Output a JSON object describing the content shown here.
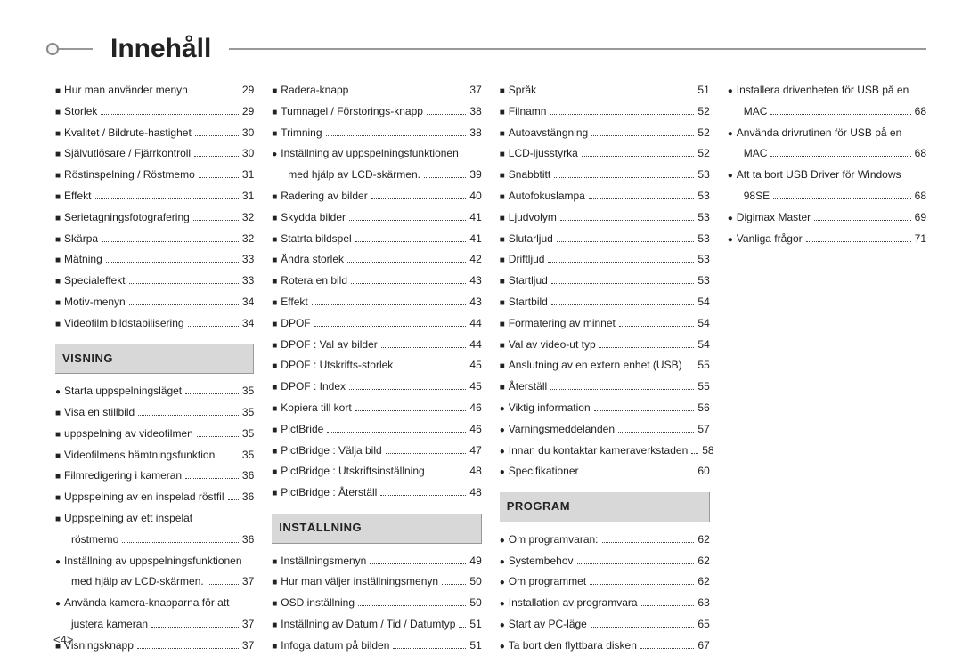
{
  "title": "Innehåll",
  "page_number_label": "<4>",
  "columns": [
    {
      "blocks": [
        {
          "type": "entries",
          "items": [
            {
              "b": "■",
              "t": "Hur man använder menyn",
              "p": "29"
            },
            {
              "b": "■",
              "t": "Storlek",
              "p": "29"
            },
            {
              "b": "■",
              "t": "Kvalitet / Bildrute-hastighet",
              "p": "30"
            },
            {
              "b": "■",
              "t": "Självutlösare / Fjärrkontroll",
              "p": "30"
            },
            {
              "b": "■",
              "t": "Röstinspelning / Röstmemo",
              "p": "31"
            },
            {
              "b": "■",
              "t": "Effekt",
              "p": "31"
            },
            {
              "b": "■",
              "t": "Serietagningsfotografering",
              "p": "32"
            },
            {
              "b": "■",
              "t": "Skärpa",
              "p": "32"
            },
            {
              "b": "■",
              "t": "Mätning",
              "p": "33"
            },
            {
              "b": "■",
              "t": "Specialeffekt",
              "p": "33"
            },
            {
              "b": "■",
              "t": "Motiv-menyn",
              "p": "34"
            },
            {
              "b": "■",
              "t": "Videofilm bildstabilisering",
              "p": "34"
            }
          ]
        },
        {
          "type": "heading",
          "text": "VISNING"
        },
        {
          "type": "entries",
          "items": [
            {
              "b": "●",
              "t": "Starta uppspelningsläget",
              "p": "35"
            },
            {
              "b": "■",
              "t": "Visa en stillbild",
              "p": "35"
            },
            {
              "b": "■",
              "t": "uppspelning av videofilmen",
              "p": "35"
            },
            {
              "b": "■",
              "t": "Videofilmens hämtningsfunktion",
              "p": "35"
            },
            {
              "b": "■",
              "t": "Filmredigering i kameran",
              "p": "36"
            },
            {
              "b": "■",
              "t": "Uppspelning av en inspelad röstfil",
              "p": "36"
            },
            {
              "b": "■",
              "t": "Uppspelning av ett inspelat",
              "p": ""
            },
            {
              "b": "",
              "t": "röstmemo",
              "p": "36",
              "cont": true
            },
            {
              "b": "●",
              "t": "Inställning av uppspelningsfunktionen",
              "p": ""
            },
            {
              "b": "",
              "t": "med hjälp av LCD-skärmen.",
              "p": "37",
              "cont": true
            },
            {
              "b": "●",
              "t": "Använda kamera-knapparna för att",
              "p": ""
            },
            {
              "b": "",
              "t": "justera kameran",
              "p": "37",
              "cont": true
            },
            {
              "b": "■",
              "t": "Visningsknapp",
              "p": "37"
            }
          ]
        }
      ]
    },
    {
      "blocks": [
        {
          "type": "entries",
          "items": [
            {
              "b": "■",
              "t": "Radera-knapp",
              "p": "37"
            },
            {
              "b": "■",
              "t": "Tumnagel / Förstorings-knapp",
              "p": "38"
            },
            {
              "b": "■",
              "t": "Trimning",
              "p": "38"
            },
            {
              "b": "●",
              "t": "Inställning av uppspelningsfunktionen",
              "p": ""
            },
            {
              "b": "",
              "t": "med hjälp av LCD-skärmen.",
              "p": "39",
              "cont": true
            },
            {
              "b": "■",
              "t": "Radering av bilder",
              "p": "40"
            },
            {
              "b": "■",
              "t": "Skydda bilder",
              "p": "41"
            },
            {
              "b": "■",
              "t": "Statrta bildspel",
              "p": "41"
            },
            {
              "b": "■",
              "t": "Ändra storlek",
              "p": "42"
            },
            {
              "b": "■",
              "t": "Rotera en bild",
              "p": "43"
            },
            {
              "b": "■",
              "t": "Effekt",
              "p": "43"
            },
            {
              "b": "■",
              "t": "DPOF",
              "p": "44"
            },
            {
              "b": "■",
              "t": "DPOF : Val av bilder",
              "p": "44"
            },
            {
              "b": "■",
              "t": "DPOF : Utskrifts-storlek",
              "p": "45"
            },
            {
              "b": "■",
              "t": "DPOF : Index",
              "p": "45"
            },
            {
              "b": "■",
              "t": "Kopiera till kort",
              "p": "46"
            },
            {
              "b": "■",
              "t": "PictBride",
              "p": "46"
            },
            {
              "b": "■",
              "t": "PictBridge : Välja bild",
              "p": "47"
            },
            {
              "b": "■",
              "t": "PictBridge : Utskriftsinställning",
              "p": "48"
            },
            {
              "b": "■",
              "t": "PictBridge : Återställ",
              "p": "48"
            }
          ]
        },
        {
          "type": "heading",
          "text": "INSTÄLLNING"
        },
        {
          "type": "entries",
          "items": [
            {
              "b": "■",
              "t": "Inställningsmenyn",
              "p": "49"
            },
            {
              "b": "■",
              "t": "Hur man väljer inställningsmenyn",
              "p": "50"
            },
            {
              "b": "■",
              "t": "OSD inställning",
              "p": "50"
            },
            {
              "b": "■",
              "t": "Inställning av Datum / Tid / Datumtyp",
              "p": "51"
            },
            {
              "b": "■",
              "t": "Infoga datum på bilden",
              "p": "51"
            }
          ]
        }
      ]
    },
    {
      "blocks": [
        {
          "type": "entries",
          "items": [
            {
              "b": "■",
              "t": "Språk",
              "p": "51"
            },
            {
              "b": "■",
              "t": "Filnamn",
              "p": "52"
            },
            {
              "b": "■",
              "t": "Autoavstängning",
              "p": "52"
            },
            {
              "b": "■",
              "t": "LCD-ljusstyrka",
              "p": "52"
            },
            {
              "b": "■",
              "t": "Snabbtitt",
              "p": "53"
            },
            {
              "b": "■",
              "t": "Autofokuslampa",
              "p": "53"
            },
            {
              "b": "■",
              "t": "Ljudvolym",
              "p": "53"
            },
            {
              "b": "■",
              "t": "Slutarljud",
              "p": "53"
            },
            {
              "b": "■",
              "t": "Driftljud",
              "p": "53"
            },
            {
              "b": "■",
              "t": "Startljud",
              "p": "53"
            },
            {
              "b": "■",
              "t": "Startbild",
              "p": "54"
            },
            {
              "b": "■",
              "t": "Formatering av minnet",
              "p": "54"
            },
            {
              "b": "■",
              "t": "Val av video-ut typ",
              "p": "54"
            },
            {
              "b": "■",
              "t": "Anslutning av en extern enhet (USB)",
              "p": "55"
            },
            {
              "b": "■",
              "t": "Återställ",
              "p": "55"
            },
            {
              "b": "●",
              "t": "Viktig information",
              "p": "56"
            },
            {
              "b": "●",
              "t": "Varningsmeddelanden",
              "p": "57"
            },
            {
              "b": "●",
              "t": "Innan du kontaktar kameraverkstaden",
              "p": "58"
            },
            {
              "b": "●",
              "t": "Specifikationer",
              "p": "60"
            }
          ]
        },
        {
          "type": "heading",
          "text": "PROGRAM"
        },
        {
          "type": "entries",
          "items": [
            {
              "b": "●",
              "t": "Om programvaran:",
              "p": "62"
            },
            {
              "b": "●",
              "t": "Systembehov",
              "p": "62"
            },
            {
              "b": "●",
              "t": "Om programmet",
              "p": "62"
            },
            {
              "b": "●",
              "t": "Installation av programvara",
              "p": "63"
            },
            {
              "b": "●",
              "t": "Start av PC-läge",
              "p": "65"
            },
            {
              "b": "●",
              "t": "Ta bort den flyttbara disken",
              "p": "67"
            }
          ]
        }
      ]
    },
    {
      "blocks": [
        {
          "type": "entries",
          "items": [
            {
              "b": "●",
              "t": "Installera drivenheten för USB på en",
              "p": ""
            },
            {
              "b": "",
              "t": "MAC",
              "p": "68",
              "cont": true
            },
            {
              "b": "●",
              "t": "Använda drivrutinen för USB på en",
              "p": ""
            },
            {
              "b": "",
              "t": "MAC",
              "p": "68",
              "cont": true
            },
            {
              "b": "●",
              "t": "Att ta bort USB Driver för Windows",
              "p": ""
            },
            {
              "b": "",
              "t": "98SE",
              "p": "68",
              "cont": true
            },
            {
              "b": "●",
              "t": "Digimax Master",
              "p": "69"
            },
            {
              "b": "●",
              "t": "Vanliga frågor",
              "p": "71"
            }
          ]
        }
      ]
    }
  ]
}
